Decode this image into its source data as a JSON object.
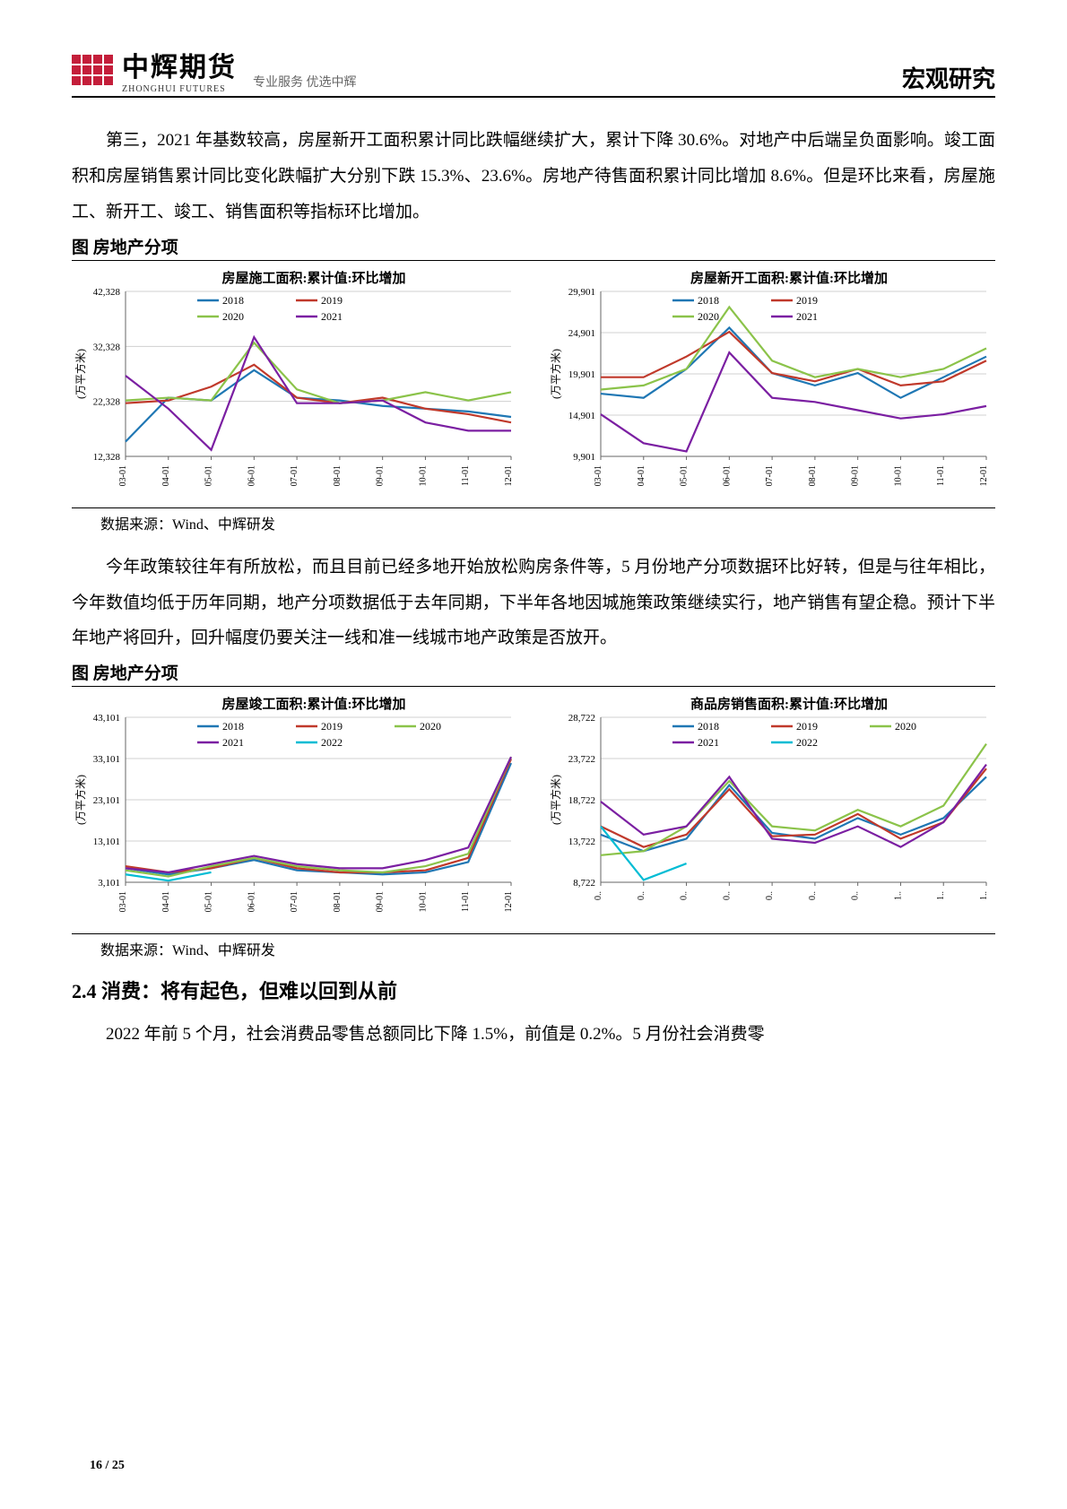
{
  "header": {
    "logo_cn": "中辉期货",
    "logo_en": "ZHONGHUI FUTURES",
    "slogan": "专业服务 优选中辉",
    "right": "宏观研究"
  },
  "para1": "第三，2021 年基数较高，房屋新开工面积累计同比跌幅继续扩大，累计下降 30.6%。对地产中后端呈负面影响。竣工面积和房屋销售累计同比变化跌幅扩大分别下跌 15.3%、23.6%。房地产待售面积累计同比增加 8.6%。但是环比来看，房屋施工、新开工、竣工、销售面积等指标环比增加。",
  "fig_title_1": "图 房地产分项",
  "source_text": "数据来源：Wind、中辉研发",
  "para2": "今年政策较往年有所放松，而且目前已经多地开始放松购房条件等，5 月份地产分项数据环比好转，但是与往年相比，今年数值均低于历年同期，地产分项数据低于去年同期，下半年各地因城施策政策继续实行，地产销售有望企稳。预计下半年地产将回升，回升幅度仍要关注一线和准一线城市地产政策是否放开。",
  "fig_title_2": "图 房地产分项",
  "section_2_4": "2.4 消费：将有起色，但难以回到从前",
  "para3": "2022 年前 5 个月，社会消费品零售总额同比下降 1.5%，前值是 0.2%。5 月份社会消费零",
  "footer": "16 / 25",
  "colors": {
    "s2018": "#1f77b4",
    "s2019": "#c0392b",
    "s2020": "#8bc34a",
    "s2021": "#7b1fa2",
    "s2022": "#00bcd4",
    "grid": "#d0d0d0",
    "axis": "#666666"
  },
  "chart1": {
    "title": "房屋施工面积:累计值:环比增加",
    "ylabel": "(万平方米)",
    "ymin": 12328,
    "ymax": 42328,
    "ystep": 10000,
    "ylabels": [
      "12,328",
      "22,328",
      "32,328",
      "42,328"
    ],
    "xlabels": [
      "03-01",
      "04-01",
      "05-01",
      "06-01",
      "07-01",
      "08-01",
      "09-01",
      "10-01",
      "11-01",
      "12-01"
    ],
    "legend": [
      "2018",
      "2019",
      "2020",
      "2021"
    ],
    "series": {
      "2018": [
        15000,
        23000,
        22500,
        28000,
        23000,
        22500,
        21500,
        21000,
        20500,
        19500
      ],
      "2019": [
        22000,
        22500,
        25000,
        29000,
        23000,
        22000,
        23000,
        21000,
        20000,
        18500
      ],
      "2020": [
        22500,
        23000,
        22500,
        33000,
        24500,
        22000,
        22500,
        24000,
        22500,
        24000
      ],
      "2021": [
        27000,
        21000,
        13500,
        34000,
        22000,
        22000,
        22500,
        18500,
        17000,
        17000
      ]
    }
  },
  "chart2": {
    "title": "房屋新开工面积:累计值:环比增加",
    "ylabel": "(万平方米)",
    "ymin": 9901,
    "ymax": 29901,
    "ystep": 5000,
    "ylabels": [
      "9,901",
      "14,901",
      "19,901",
      "24,901",
      "29,901"
    ],
    "xlabels": [
      "03-01",
      "04-01",
      "05-01",
      "06-01",
      "07-01",
      "08-01",
      "09-01",
      "10-01",
      "11-01",
      "12-01"
    ],
    "legend": [
      "2018",
      "2019",
      "2020",
      "2021"
    ],
    "series": {
      "2018": [
        17500,
        17000,
        20500,
        25500,
        20000,
        18500,
        20000,
        17000,
        19500,
        22000
      ],
      "2019": [
        19500,
        19500,
        22000,
        25000,
        20000,
        19000,
        20500,
        18500,
        19000,
        21500
      ],
      "2020": [
        18000,
        18500,
        20500,
        28000,
        21500,
        19500,
        20500,
        19500,
        20500,
        23000
      ],
      "2021": [
        15000,
        11500,
        10500,
        22500,
        17000,
        16500,
        15500,
        14500,
        15000,
        16000
      ]
    }
  },
  "chart3": {
    "title": "房屋竣工面积:累计值:环比增加",
    "ylabel": "(万平方米)",
    "ymin": 3101,
    "ymax": 43101,
    "ystep": 10000,
    "ylabels": [
      "3,101",
      "13,101",
      "23,101",
      "33,101",
      "43,101"
    ],
    "xlabels": [
      "03-01",
      "04-01",
      "05-01",
      "06-01",
      "07-01",
      "08-01",
      "09-01",
      "10-01",
      "11-01",
      "12-01"
    ],
    "legend": [
      "2018",
      "2019",
      "2020",
      "2021",
      "2022"
    ],
    "series": {
      "2018": [
        6500,
        5000,
        6500,
        8500,
        6000,
        5500,
        5000,
        5500,
        8000,
        32000
      ],
      "2019": [
        7000,
        5500,
        6500,
        9000,
        6500,
        5500,
        5500,
        6000,
        9000,
        33000
      ],
      "2020": [
        6000,
        4500,
        7000,
        9000,
        7000,
        6000,
        5500,
        7000,
        10000,
        33500
      ],
      "2021": [
        6500,
        5500,
        7500,
        9500,
        7500,
        6500,
        6500,
        8500,
        11500,
        33500
      ],
      "2022": [
        5000,
        3500,
        5500,
        null,
        null,
        null,
        null,
        null,
        null,
        null
      ]
    }
  },
  "chart4": {
    "title": "商品房销售面积:累计值:环比增加",
    "ylabel": "(万平方米)",
    "ymin": 8722,
    "ymax": 28722,
    "ystep": 5000,
    "ylabels": [
      "8,722",
      "13,722",
      "18,722",
      "23,722",
      "28,722"
    ],
    "xlabels": [
      "0..",
      "0..",
      "0..",
      "0..",
      "0..",
      "0..",
      "0..",
      "1..",
      "1..",
      "1.."
    ],
    "legend": [
      "2018",
      "2019",
      "2020",
      "2021",
      "2022"
    ],
    "series": {
      "2018": [
        14500,
        12500,
        14000,
        20500,
        14700,
        14000,
        16500,
        14500,
        16500,
        21500
      ],
      "2019": [
        15500,
        13000,
        14500,
        20000,
        14300,
        14500,
        17000,
        14000,
        16000,
        22500
      ],
      "2020": [
        12000,
        12500,
        15500,
        21000,
        15500,
        15000,
        17500,
        15500,
        18000,
        25500
      ],
      "2021": [
        18500,
        14500,
        15500,
        21500,
        14000,
        13500,
        15500,
        13000,
        16000,
        23000
      ],
      "2022": [
        15500,
        9000,
        11000,
        null,
        null,
        null,
        null,
        null,
        null,
        null
      ]
    }
  }
}
